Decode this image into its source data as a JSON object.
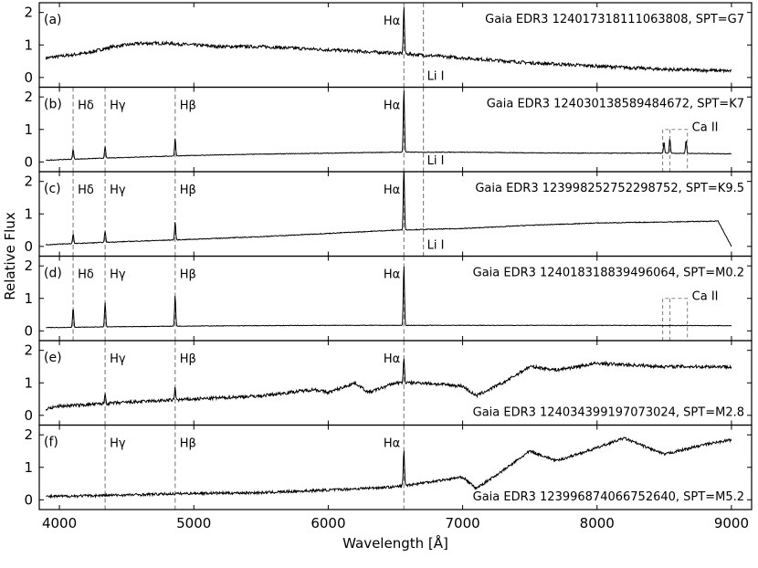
{
  "figure": {
    "xlabel": "Wavelength [Å]",
    "ylabel": "Relative Flux"
  },
  "chart_data": {
    "type": "line",
    "xlim": [
      3850,
      9150
    ],
    "xticks": [
      4000,
      5000,
      6000,
      7000,
      8000,
      9000
    ],
    "ylim": [
      -0.3,
      2.3
    ],
    "yticks": [
      0,
      1,
      2
    ],
    "grid": false,
    "lines": {
      "Hdelta": 4102,
      "Hgamma": 4340,
      "Hbeta": 4861,
      "Halpha": 6563,
      "LiI": 6708,
      "CaII": [
        8498,
        8542,
        8662
      ]
    },
    "line_labels": {
      "Hdelta": "Hδ",
      "Hgamma": "Hγ",
      "Hbeta": "Hβ",
      "Halpha": "Hα",
      "LiI": "Li I",
      "CaII": "Ca II"
    },
    "panels": [
      {
        "label": "(a)",
        "title": "Gaia EDR3 124017318111063808,  SPT=G7",
        "title_pos": "top",
        "markers": [
          "Halpha",
          "LiI"
        ],
        "dashed": [
          "Halpha",
          "LiI"
        ],
        "noise": 0.05,
        "spectrum": [
          [
            3900,
            0.6
          ],
          [
            4000,
            0.65
          ],
          [
            4200,
            0.75
          ],
          [
            4400,
            0.95
          ],
          [
            4600,
            1.05
          ],
          [
            4800,
            1.05
          ],
          [
            5000,
            1.0
          ],
          [
            5200,
            0.95
          ],
          [
            5500,
            0.95
          ],
          [
            6000,
            0.85
          ],
          [
            6500,
            0.75
          ],
          [
            7000,
            0.6
          ],
          [
            7500,
            0.45
          ],
          [
            8000,
            0.35
          ],
          [
            8500,
            0.25
          ],
          [
            9000,
            0.2
          ]
        ],
        "emission": [
          [
            6563,
            1.45
          ]
        ]
      },
      {
        "label": "(b)",
        "title": "Gaia EDR3 124030138589484672,  SPT=K7",
        "title_pos": "top",
        "markers": [
          "Hdelta",
          "Hgamma",
          "Hbeta",
          "Halpha",
          "LiI",
          "CaII"
        ],
        "dashed": [
          "Hdelta",
          "Hgamma",
          "Hbeta",
          "Halpha",
          "LiI"
        ],
        "noise": 0.01,
        "spectrum": [
          [
            3900,
            0.05
          ],
          [
            4000,
            0.07
          ],
          [
            4500,
            0.14
          ],
          [
            5000,
            0.2
          ],
          [
            5500,
            0.24
          ],
          [
            6000,
            0.27
          ],
          [
            6500,
            0.3
          ],
          [
            7000,
            0.3
          ],
          [
            7500,
            0.28
          ],
          [
            8000,
            0.27
          ],
          [
            8500,
            0.27
          ],
          [
            9000,
            0.25
          ]
        ],
        "emission": [
          [
            4102,
            0.3
          ],
          [
            4340,
            0.35
          ],
          [
            4861,
            0.55
          ],
          [
            6563,
            1.95
          ],
          [
            8498,
            0.35
          ],
          [
            8542,
            0.45
          ],
          [
            8662,
            0.4
          ]
        ]
      },
      {
        "label": "(c)",
        "title": "Gaia EDR3 123998252752298752,  SPT=K9.5",
        "title_pos": "top",
        "markers": [
          "Hdelta",
          "Hgamma",
          "Hbeta",
          "Halpha",
          "LiI"
        ],
        "dashed": [
          "Hdelta",
          "Hgamma",
          "Hbeta",
          "Halpha",
          "LiI"
        ],
        "noise": 0.012,
        "spectrum": [
          [
            3900,
            0.05
          ],
          [
            4000,
            0.07
          ],
          [
            4500,
            0.15
          ],
          [
            5000,
            0.22
          ],
          [
            5500,
            0.3
          ],
          [
            6000,
            0.4
          ],
          [
            6500,
            0.5
          ],
          [
            7000,
            0.55
          ],
          [
            7500,
            0.65
          ],
          [
            8000,
            0.72
          ],
          [
            8500,
            0.75
          ],
          [
            8900,
            0.78
          ],
          [
            9000,
            0.0
          ]
        ],
        "emission": [
          [
            4102,
            0.3
          ],
          [
            4340,
            0.35
          ],
          [
            4861,
            0.55
          ],
          [
            6563,
            1.95
          ]
        ]
      },
      {
        "label": "(d)",
        "title": "Gaia EDR3 124018318839496064,  SPT=M0.2",
        "title_pos": "top",
        "markers": [
          "Hdelta",
          "Hgamma",
          "Hbeta",
          "Halpha",
          "CaII"
        ],
        "dashed": [
          "Hdelta",
          "Hgamma",
          "Hbeta",
          "Halpha"
        ],
        "noise": 0.008,
        "spectrum": [
          [
            3900,
            0.1
          ],
          [
            4500,
            0.13
          ],
          [
            5000,
            0.15
          ],
          [
            6000,
            0.17
          ],
          [
            7000,
            0.17
          ],
          [
            8000,
            0.17
          ],
          [
            9000,
            0.16
          ]
        ],
        "emission": [
          [
            4102,
            0.6
          ],
          [
            4340,
            0.75
          ],
          [
            4861,
            0.95
          ],
          [
            6563,
            1.85
          ]
        ]
      },
      {
        "label": "(e)",
        "title": "Gaia EDR3 124034399197073024,  SPT=M2.8",
        "title_pos": "bottom",
        "markers": [
          "Hgamma",
          "Hbeta",
          "Halpha"
        ],
        "dashed": [
          "Hgamma",
          "Hbeta",
          "Halpha"
        ],
        "noise": 0.05,
        "spectrum": [
          [
            3900,
            0.2
          ],
          [
            4000,
            0.28
          ],
          [
            4500,
            0.4
          ],
          [
            5000,
            0.5
          ],
          [
            5500,
            0.6
          ],
          [
            5900,
            0.8
          ],
          [
            6000,
            0.7
          ],
          [
            6200,
            1.0
          ],
          [
            6300,
            0.7
          ],
          [
            6500,
            1.0
          ],
          [
            6700,
            1.0
          ],
          [
            7000,
            0.9
          ],
          [
            7100,
            0.6
          ],
          [
            7300,
            1.0
          ],
          [
            7500,
            1.5
          ],
          [
            7700,
            1.4
          ],
          [
            8000,
            1.6
          ],
          [
            8500,
            1.5
          ],
          [
            9000,
            1.5
          ]
        ],
        "emission": [
          [
            4340,
            0.3
          ],
          [
            4861,
            0.4
          ],
          [
            6563,
            0.8
          ]
        ]
      },
      {
        "label": "(f)",
        "title": "Gaia EDR3 123996874066752640,  SPT=M5.2",
        "title_pos": "bottom",
        "markers": [
          "Hgamma",
          "Hbeta",
          "Halpha"
        ],
        "dashed": [
          "Hgamma",
          "Hbeta",
          "Halpha"
        ],
        "noise": 0.04,
        "spectrum": [
          [
            3900,
            0.1
          ],
          [
            4500,
            0.15
          ],
          [
            5000,
            0.2
          ],
          [
            5500,
            0.22
          ],
          [
            6000,
            0.3
          ],
          [
            6500,
            0.4
          ],
          [
            7000,
            0.7
          ],
          [
            7100,
            0.35
          ],
          [
            7300,
            0.9
          ],
          [
            7500,
            1.5
          ],
          [
            7700,
            1.2
          ],
          [
            8000,
            1.6
          ],
          [
            8200,
            1.9
          ],
          [
            8500,
            1.4
          ],
          [
            8800,
            1.7
          ],
          [
            9000,
            1.85
          ]
        ],
        "emission": [
          [
            6563,
            1.1
          ]
        ]
      }
    ]
  }
}
